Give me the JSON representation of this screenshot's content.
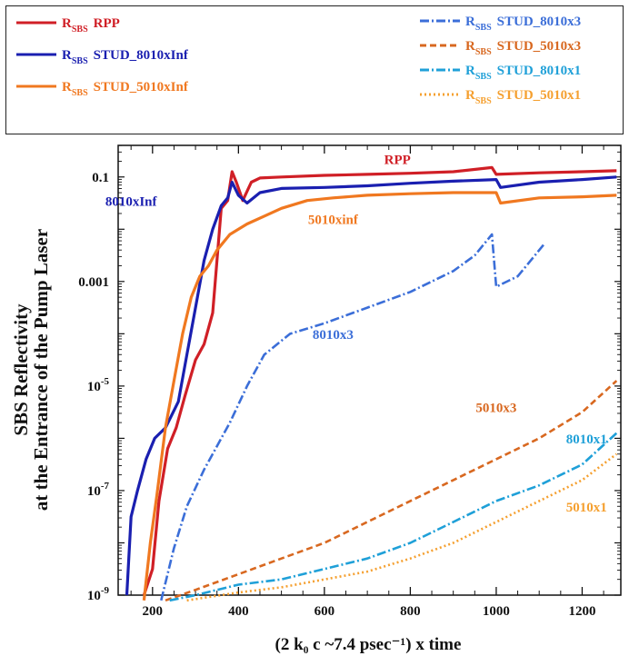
{
  "chart_data": {
    "type": "line",
    "title": "",
    "xlabel": "(2 k₀ c ~7.4 psec⁻¹) x time",
    "ylabel_line1": "SBS Reflectivity",
    "ylabel_line2": "at the Entrance of the Pump Laser",
    "xlim": [
      120,
      1290
    ],
    "ylim_log10": [
      -9,
      0
    ],
    "y_scale": "log",
    "x_ticks": [
      "200",
      "400",
      "600",
      "800",
      "1000",
      "1200"
    ],
    "x_tick_values": [
      200,
      400,
      600,
      800,
      1000,
      1200
    ],
    "y_ticks": [
      "0.1",
      "0.001",
      "10-5",
      "10-7",
      "10-9"
    ],
    "y_tick_exponents": [
      -1,
      -3,
      -5,
      -7,
      -9
    ],
    "y_tick_labels": [
      {
        "base": "0.1",
        "sup": ""
      },
      {
        "base": "0.001",
        "sup": ""
      },
      {
        "base": "10",
        "sup": "-5"
      },
      {
        "base": "10",
        "sup": "-7"
      },
      {
        "base": "10",
        "sup": "-9"
      }
    ],
    "series": [
      {
        "name": "RSBS RPP",
        "label": "RPP",
        "color": "#d01f26",
        "style": "solid",
        "points": [
          [
            180,
            -9.0
          ],
          [
            200,
            -8.5
          ],
          [
            215,
            -7.2
          ],
          [
            235,
            -6.2
          ],
          [
            255,
            -5.8
          ],
          [
            275,
            -5.2
          ],
          [
            300,
            -4.5
          ],
          [
            320,
            -4.2
          ],
          [
            340,
            -3.6
          ],
          [
            360,
            -1.6
          ],
          [
            375,
            -1.45
          ],
          [
            385,
            -0.9
          ],
          [
            395,
            -1.1
          ],
          [
            410,
            -1.45
          ],
          [
            430,
            -1.1
          ],
          [
            450,
            -1.02
          ],
          [
            500,
            -1.0
          ],
          [
            600,
            -0.97
          ],
          [
            700,
            -0.95
          ],
          [
            800,
            -0.93
          ],
          [
            900,
            -0.9
          ],
          [
            990,
            -0.82
          ],
          [
            1000,
            -0.95
          ],
          [
            1100,
            -0.92
          ],
          [
            1200,
            -0.9
          ],
          [
            1280,
            -0.88
          ]
        ]
      },
      {
        "name": "RSBS STUD_8010xInf",
        "label": "8010xInf",
        "color": "#1a1fb0",
        "style": "solid",
        "points": [
          [
            140,
            -9.0
          ],
          [
            150,
            -7.5
          ],
          [
            165,
            -7.0
          ],
          [
            185,
            -6.4
          ],
          [
            205,
            -6.0
          ],
          [
            230,
            -5.8
          ],
          [
            260,
            -5.3
          ],
          [
            280,
            -4.4
          ],
          [
            300,
            -3.5
          ],
          [
            320,
            -2.6
          ],
          [
            340,
            -2.0
          ],
          [
            360,
            -1.55
          ],
          [
            375,
            -1.4
          ],
          [
            385,
            -1.1
          ],
          [
            400,
            -1.35
          ],
          [
            420,
            -1.5
          ],
          [
            450,
            -1.3
          ],
          [
            500,
            -1.22
          ],
          [
            600,
            -1.2
          ],
          [
            700,
            -1.17
          ],
          [
            800,
            -1.12
          ],
          [
            900,
            -1.08
          ],
          [
            1000,
            -1.05
          ],
          [
            1010,
            -1.2
          ],
          [
            1100,
            -1.1
          ],
          [
            1200,
            -1.05
          ],
          [
            1280,
            -1.0
          ]
        ]
      },
      {
        "name": "RSBS STUD_5010xInf",
        "label": "5010xinf",
        "color": "#f07820",
        "style": "solid",
        "points": [
          [
            180,
            -9.1
          ],
          [
            195,
            -8.0
          ],
          [
            210,
            -7.1
          ],
          [
            230,
            -5.8
          ],
          [
            250,
            -4.9
          ],
          [
            270,
            -4.0
          ],
          [
            290,
            -3.3
          ],
          [
            310,
            -2.9
          ],
          [
            330,
            -2.7
          ],
          [
            350,
            -2.4
          ],
          [
            380,
            -2.1
          ],
          [
            420,
            -1.9
          ],
          [
            460,
            -1.75
          ],
          [
            500,
            -1.6
          ],
          [
            560,
            -1.45
          ],
          [
            620,
            -1.4
          ],
          [
            700,
            -1.35
          ],
          [
            800,
            -1.32
          ],
          [
            900,
            -1.3
          ],
          [
            1000,
            -1.3
          ],
          [
            1010,
            -1.5
          ],
          [
            1100,
            -1.4
          ],
          [
            1200,
            -1.38
          ],
          [
            1280,
            -1.35
          ]
        ]
      },
      {
        "name": "RSBS STUD_8010x3",
        "label": "8010x3",
        "color": "#3b6ed8",
        "style": "dashdot",
        "points": [
          [
            220,
            -9.1
          ],
          [
            250,
            -8.1
          ],
          [
            280,
            -7.3
          ],
          [
            320,
            -6.6
          ],
          [
            380,
            -5.7
          ],
          [
            420,
            -5.0
          ],
          [
            460,
            -4.4
          ],
          [
            520,
            -4.0
          ],
          [
            600,
            -3.8
          ],
          [
            700,
            -3.5
          ],
          [
            800,
            -3.2
          ],
          [
            900,
            -2.8
          ],
          [
            950,
            -2.5
          ],
          [
            990,
            -2.1
          ],
          [
            1000,
            -3.1
          ],
          [
            1050,
            -2.9
          ],
          [
            1110,
            -2.3
          ]
        ]
      },
      {
        "name": "RSBS STUD_5010x3",
        "label": "5010x3",
        "color": "#d86820",
        "style": "dashed",
        "points": [
          [
            230,
            -9.1
          ],
          [
            300,
            -8.9
          ],
          [
            400,
            -8.6
          ],
          [
            500,
            -8.3
          ],
          [
            600,
            -8.0
          ],
          [
            700,
            -7.6
          ],
          [
            800,
            -7.2
          ],
          [
            900,
            -6.8
          ],
          [
            1000,
            -6.4
          ],
          [
            1100,
            -6.0
          ],
          [
            1200,
            -5.5
          ],
          [
            1280,
            -4.9
          ]
        ]
      },
      {
        "name": "RSBS STUD_8010x1",
        "label": "8010x1",
        "color": "#1fa0d8",
        "style": "dashdot",
        "points": [
          [
            240,
            -9.1
          ],
          [
            300,
            -9.0
          ],
          [
            400,
            -8.8
          ],
          [
            500,
            -8.7
          ],
          [
            600,
            -8.5
          ],
          [
            700,
            -8.3
          ],
          [
            800,
            -8.0
          ],
          [
            900,
            -7.6
          ],
          [
            1000,
            -7.2
          ],
          [
            1100,
            -6.9
          ],
          [
            1200,
            -6.5
          ],
          [
            1280,
            -5.9
          ]
        ]
      },
      {
        "name": "RSBS STUD_5010x1",
        "label": "5010x1",
        "color": "#f5a030",
        "style": "dotted",
        "points": [
          [
            280,
            -9.1
          ],
          [
            400,
            -8.95
          ],
          [
            500,
            -8.85
          ],
          [
            600,
            -8.7
          ],
          [
            700,
            -8.55
          ],
          [
            800,
            -8.3
          ],
          [
            900,
            -8.0
          ],
          [
            1000,
            -7.6
          ],
          [
            1100,
            -7.2
          ],
          [
            1200,
            -6.8
          ],
          [
            1280,
            -6.3
          ]
        ]
      }
    ],
    "annotations": [
      {
        "text": "RPP",
        "color": "#d01f26",
        "x": 770,
        "y": -0.75
      },
      {
        "text": "8010xInf",
        "color": "#1a1fb0",
        "x": 150,
        "y": -1.55
      },
      {
        "text": "5010xinf",
        "color": "#f07820",
        "x": 620,
        "y": -1.9
      },
      {
        "text": "8010x3",
        "color": "#3b6ed8",
        "x": 620,
        "y": -4.1
      },
      {
        "text": "5010x3",
        "color": "#d86820",
        "x": 1000,
        "y": -5.5
      },
      {
        "text": "8010x1",
        "color": "#1fa0d8",
        "x": 1210,
        "y": -6.1
      },
      {
        "text": "5010x1",
        "color": "#f5a030",
        "x": 1210,
        "y": -7.4
      }
    ],
    "legend": {
      "placement": "top",
      "items": [
        {
          "prefix": "R",
          "sub": "SBS",
          "label": "RPP",
          "color": "#d01f26",
          "style": "solid"
        },
        {
          "prefix": "R",
          "sub": "SBS",
          "label": "STUD_8010xInf",
          "color": "#1a1fb0",
          "style": "solid"
        },
        {
          "prefix": "R",
          "sub": "SBS",
          "label": "STUD_5010xInf",
          "color": "#f07820",
          "style": "solid"
        },
        {
          "prefix": "R",
          "sub": "SBS",
          "label": "STUD_8010x3",
          "color": "#3b6ed8",
          "style": "dashdot"
        },
        {
          "prefix": "R",
          "sub": "SBS",
          "label": "STUD_5010x3",
          "color": "#d86820",
          "style": "dashed"
        },
        {
          "prefix": "R",
          "sub": "SBS",
          "label": "STUD_8010x1",
          "color": "#1fa0d8",
          "style": "dashdot"
        },
        {
          "prefix": "R",
          "sub": "SBS",
          "label": "STUD_5010x1",
          "color": "#f5a030",
          "style": "dotted"
        }
      ]
    }
  }
}
